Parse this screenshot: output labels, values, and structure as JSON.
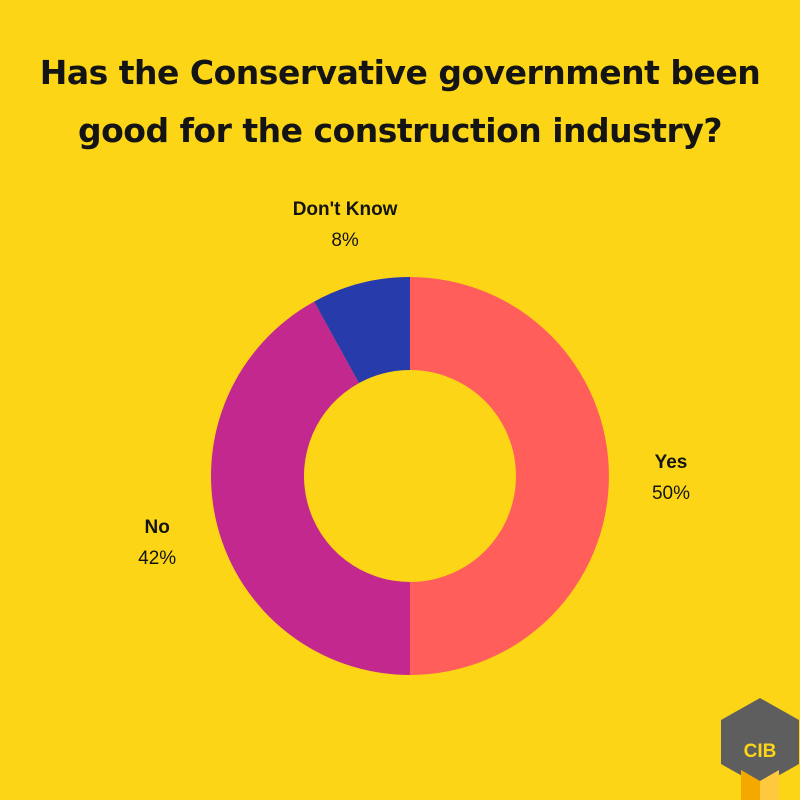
{
  "page": {
    "background": "#FCD616"
  },
  "title_lines": [
    "Has the Conservative government been",
    "good for the construction industry?"
  ],
  "chart_data": {
    "type": "pie",
    "variant": "donut",
    "title": "Has the Conservative government been good for the construction industry?",
    "slices": [
      {
        "label": "Yes",
        "value": 50,
        "value_label": "50%",
        "color": "#FF5E5B"
      },
      {
        "label": "No",
        "value": 42,
        "value_label": "42%",
        "color": "#C2288E"
      },
      {
        "label": "Don't Know",
        "value": 8,
        "value_label": "8%",
        "color": "#283BAB"
      }
    ],
    "start": "12 o'clock",
    "direction": "clockwise",
    "legend": "none"
  },
  "logo": {
    "text": "CIB",
    "colors": {
      "hex": "#5E5E5E",
      "text": "#FCD616",
      "cube_left": "#F5A800",
      "cube_right": "#FFC83D"
    }
  }
}
